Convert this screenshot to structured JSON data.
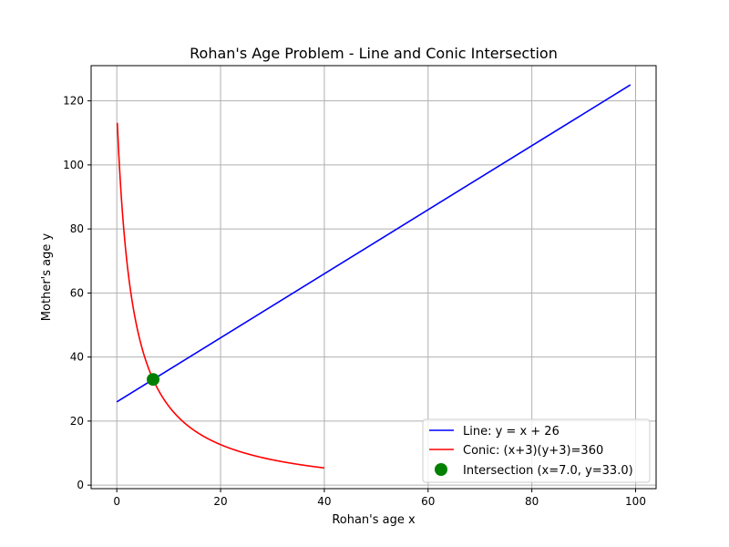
{
  "chart_data": {
    "type": "line",
    "title": "Rohan's Age Problem - Line and Conic Intersection",
    "xlabel": "Rohan's age x",
    "ylabel": "Mother's age y",
    "xlim": [
      -4.95,
      103.95
    ],
    "ylim": [
      -1.1,
      131.0
    ],
    "xticks": [
      0,
      20,
      40,
      60,
      80,
      100
    ],
    "yticks": [
      0,
      20,
      40,
      60,
      80,
      100,
      120
    ],
    "xtick_labels": [
      "0",
      "20",
      "40",
      "60",
      "80",
      "100"
    ],
    "ytick_labels": [
      "0",
      "20",
      "40",
      "60",
      "80",
      "100",
      "120"
    ],
    "grid": true,
    "legend_position": "lower-right",
    "series": [
      {
        "name": "Line: y = x + 26",
        "kind": "line",
        "color": "#0000ff",
        "equation": "y = x + 26",
        "x_range": [
          0,
          99
        ]
      },
      {
        "name": "Conic: (x+3)(y+3)=360",
        "kind": "curve",
        "color": "#ff0000",
        "equation": "(x+3)(y+3)=360",
        "x_range": [
          0.1,
          40
        ]
      },
      {
        "name": "Intersection (x=7.0, y=33.0)",
        "kind": "point",
        "color": "#008000",
        "x": 7.0,
        "y": 33.0
      }
    ]
  }
}
